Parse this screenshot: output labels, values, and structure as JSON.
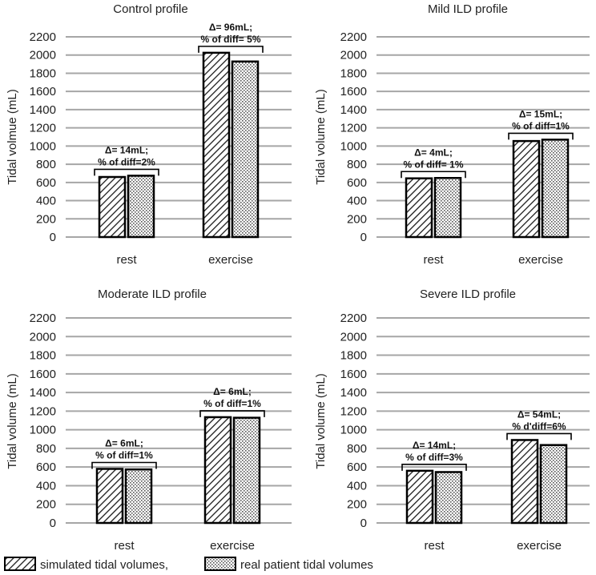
{
  "chart_data": [
    {
      "type": "bar",
      "title": "Control profile",
      "ylabel": "Tidal volmue (mL)",
      "categories": [
        "rest",
        "exercise"
      ],
      "ylim": [
        0,
        2200
      ],
      "yticks": [
        0,
        200,
        400,
        600,
        800,
        1000,
        1200,
        1400,
        1600,
        1800,
        2000,
        2200
      ],
      "series": [
        {
          "name": "simulated tidal volumes,",
          "values": [
            660,
            2025
          ]
        },
        {
          "name": "real patient tidal volumes",
          "values": [
            674,
            1929
          ]
        }
      ],
      "annotations": [
        {
          "category": "rest",
          "line1": "Δ= 14mL;",
          "line2": "% of diff=2%"
        },
        {
          "category": "exercise",
          "line1": "Δ= 96mL;",
          "line2": "% of diff= 5%"
        }
      ]
    },
    {
      "type": "bar",
      "title": "Mild ILD profile",
      "ylabel": "Tidal volume (mL)",
      "categories": [
        "rest",
        "exercise"
      ],
      "ylim": [
        0,
        2200
      ],
      "yticks": [
        0,
        200,
        400,
        600,
        800,
        1000,
        1200,
        1400,
        1600,
        1800,
        2000,
        2200
      ],
      "series": [
        {
          "name": "simulated tidal volumes,",
          "values": [
            645,
            1055
          ]
        },
        {
          "name": "real patient tidal volumes",
          "values": [
            649,
            1070
          ]
        }
      ],
      "annotations": [
        {
          "category": "rest",
          "line1": "Δ= 4mL;",
          "line2": "% of diff= 1%"
        },
        {
          "category": "exercise",
          "line1": "Δ= 15mL;",
          "line2": "% of diff=1%"
        }
      ]
    },
    {
      "type": "bar",
      "title": "Moderate ILD profile",
      "ylabel": "Tidal volume (mL)",
      "categories": [
        "rest",
        "exercise"
      ],
      "ylim": [
        0,
        2200
      ],
      "yticks": [
        0,
        200,
        400,
        600,
        800,
        1000,
        1200,
        1400,
        1600,
        1800,
        2000,
        2200
      ],
      "series": [
        {
          "name": "simulated tidal volumes,",
          "values": [
            580,
            1135
          ]
        },
        {
          "name": "real patient tidal volumes",
          "values": [
            574,
            1129
          ]
        }
      ],
      "annotations": [
        {
          "category": "rest",
          "line1": "Δ= 6mL;",
          "line2": "% of diff=1%"
        },
        {
          "category": "exercise",
          "line1": "Δ= 6mL;",
          "line2": "% of diff=1%"
        }
      ]
    },
    {
      "type": "bar",
      "title": "Severe ILD profile",
      "ylabel": "Tidal volume (mL)",
      "categories": [
        "rest",
        "exercise"
      ],
      "ylim": [
        0,
        2200
      ],
      "yticks": [
        0,
        200,
        400,
        600,
        800,
        1000,
        1200,
        1400,
        1600,
        1800,
        2000,
        2200
      ],
      "series": [
        {
          "name": "simulated tidal volumes,",
          "values": [
            560,
            890
          ]
        },
        {
          "name": "real patient tidal volumes",
          "values": [
            546,
            836
          ]
        }
      ],
      "annotations": [
        {
          "category": "rest",
          "line1": "Δ= 14mL;",
          "line2": "% of diff=3%"
        },
        {
          "category": "exercise",
          "line1": "Δ= 54mL;",
          "line2": "% d'diff=6%"
        }
      ]
    }
  ],
  "legend": {
    "items": [
      {
        "label": "simulated tidal volumes,",
        "pattern": "diagonal-hatch"
      },
      {
        "label": "real patient tidal volumes",
        "pattern": "dotted"
      }
    ]
  },
  "colors": {
    "grid": "#a6a6a6",
    "bar_stroke": "#000000",
    "hatch": "#1a1a1a",
    "dots": "#555555"
  }
}
